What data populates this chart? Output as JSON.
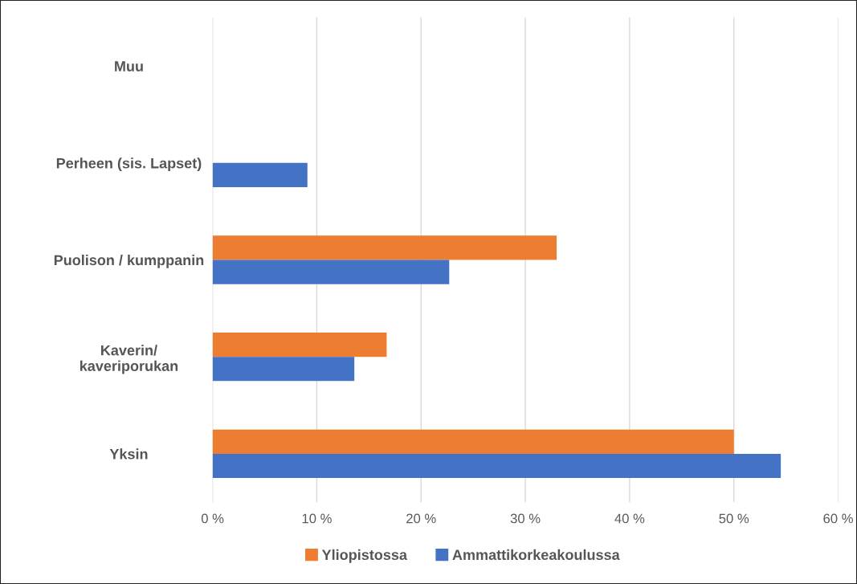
{
  "chart_data": {
    "type": "bar",
    "orientation": "horizontal",
    "categories": [
      "Muu",
      "Perheen (sis. Lapset)",
      "Puolison / kumppanin",
      "Kaverin/\nkaveriporukan",
      "Yksin"
    ],
    "series": [
      {
        "name": "Yliopistossa",
        "color": "#ed7d31",
        "values": [
          0,
          0,
          33,
          16.7,
          50
        ]
      },
      {
        "name": "Ammattikorkeakoulussa",
        "color": "#4472c4",
        "values": [
          0,
          9.1,
          22.7,
          13.6,
          54.5
        ]
      }
    ],
    "xlim": [
      0,
      60
    ],
    "xticks": [
      {
        "value": 0,
        "label": "0 %"
      },
      {
        "value": 10,
        "label": "10 %"
      },
      {
        "value": 20,
        "label": "20 %"
      },
      {
        "value": 30,
        "label": "30 %"
      },
      {
        "value": 40,
        "label": "40 %"
      },
      {
        "value": 50,
        "label": "50 %"
      },
      {
        "value": 60,
        "label": "60 %"
      }
    ],
    "grid": "x",
    "legend": "bottom"
  }
}
